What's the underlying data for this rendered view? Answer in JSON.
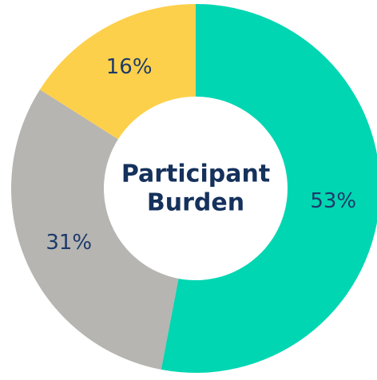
{
  "chart_data": {
    "type": "donut",
    "center_label": [
      "Participant",
      "Burden"
    ],
    "categories": [
      null,
      null,
      null
    ],
    "values": [
      53,
      31,
      16
    ],
    "value_labels": [
      "53%",
      "31%",
      "16%"
    ],
    "colors": [
      "#00d6b2",
      "#b6b5b1",
      "#fdd04c"
    ]
  }
}
